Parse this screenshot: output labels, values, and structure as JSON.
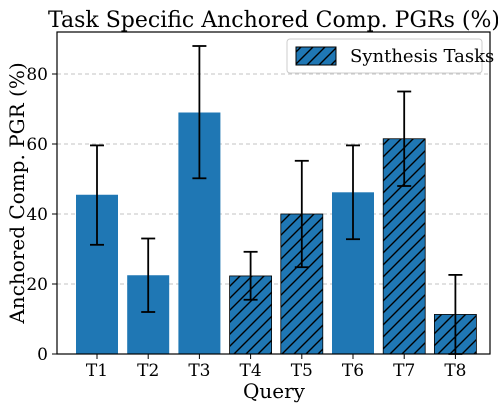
{
  "chart_data": {
    "type": "bar",
    "title": "Task Specific Anchored Comp. PGRs (%)",
    "xlabel": "Query",
    "ylabel": "Anchored Comp. PGR (%)",
    "categories": [
      "T1",
      "T2",
      "T3",
      "T4",
      "T5",
      "T6",
      "T7",
      "T8"
    ],
    "values": [
      45.5,
      22.5,
      69.0,
      22.3,
      40.0,
      46.2,
      61.5,
      11.3
    ],
    "error_low": [
      31.2,
      12.0,
      50.2,
      15.5,
      24.8,
      32.8,
      48.0,
      0.0
    ],
    "error_high": [
      59.6,
      33.0,
      88.0,
      29.2,
      55.2,
      59.6,
      75.0,
      22.6
    ],
    "hatched": [
      false,
      false,
      false,
      true,
      true,
      false,
      true,
      true
    ],
    "ylim": [
      0,
      92
    ],
    "yticks": [
      0,
      20,
      40,
      60,
      80
    ],
    "grid": true,
    "bar_color": "#1f77b4",
    "legend": {
      "position": "top-right",
      "entries": [
        {
          "label": "Synthesis Tasks",
          "hatched": true
        }
      ]
    }
  }
}
